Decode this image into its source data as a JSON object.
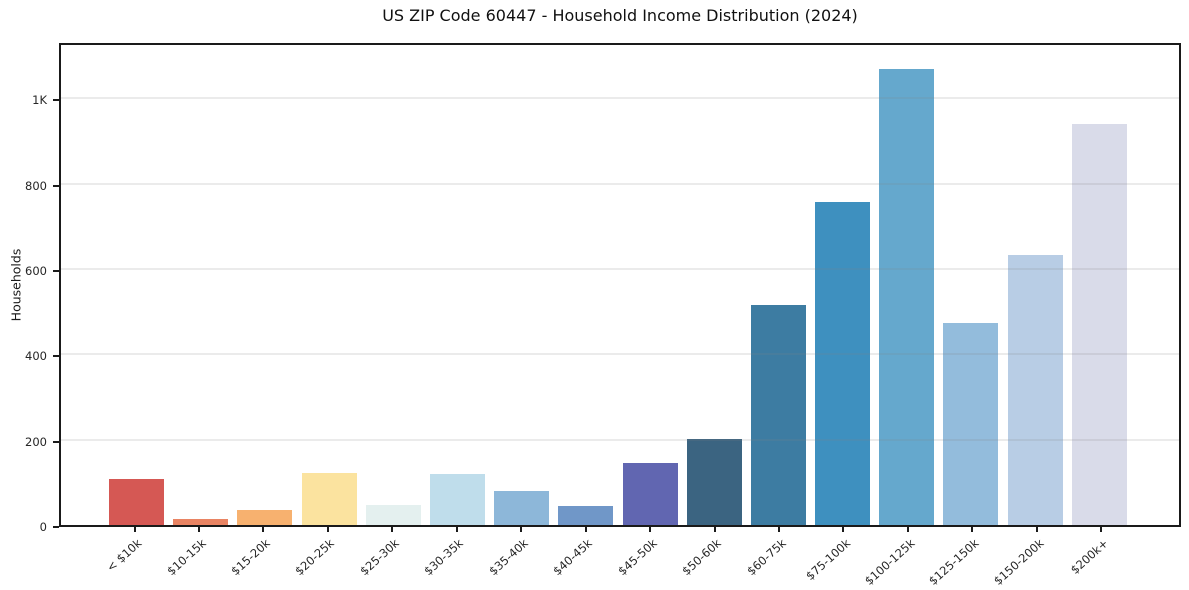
{
  "chart_data": {
    "type": "bar",
    "title": "US ZIP Code 60447 - Household Income Distribution (2024)",
    "xlabel": "",
    "ylabel": "Households",
    "ylim": [
      0,
      1125
    ],
    "grid": "horizontal",
    "legend": "none",
    "yticks": [
      {
        "value": 0,
        "label": "0"
      },
      {
        "value": 200,
        "label": "200"
      },
      {
        "value": 400,
        "label": "400"
      },
      {
        "value": 600,
        "label": "600"
      },
      {
        "value": 800,
        "label": "800"
      },
      {
        "value": 1000,
        "label": "1K"
      }
    ],
    "categories": [
      "< $10k",
      "$10-15k",
      "$15-20k",
      "$20-25k",
      "$25-30k",
      "$30-35k",
      "$35-40k",
      "$40-45k",
      "$45-50k",
      "$50-60k",
      "$60-75k",
      "$75-100k",
      "$100-125k",
      "$125-150k",
      "$150-200k",
      "$200k+"
    ],
    "values": [
      107,
      15,
      35,
      122,
      47,
      120,
      80,
      44,
      145,
      201,
      516,
      758,
      1068,
      474,
      633,
      940
    ],
    "bar_colors": [
      "#d4534e",
      "#e8805e",
      "#f7ae6a",
      "#fbe29c",
      "#e3efee",
      "#bddcea",
      "#89b5d8",
      "#6b94c6",
      "#5c61ae",
      "#355f7d",
      "#37789f",
      "#388cbd",
      "#60a5cb",
      "#90badb",
      "#b6cbe4",
      "#d8dae8"
    ],
    "axis_color": "#1a1a1a",
    "gridline_color": "#e8e8e8",
    "background_color": "#ffffff"
  }
}
